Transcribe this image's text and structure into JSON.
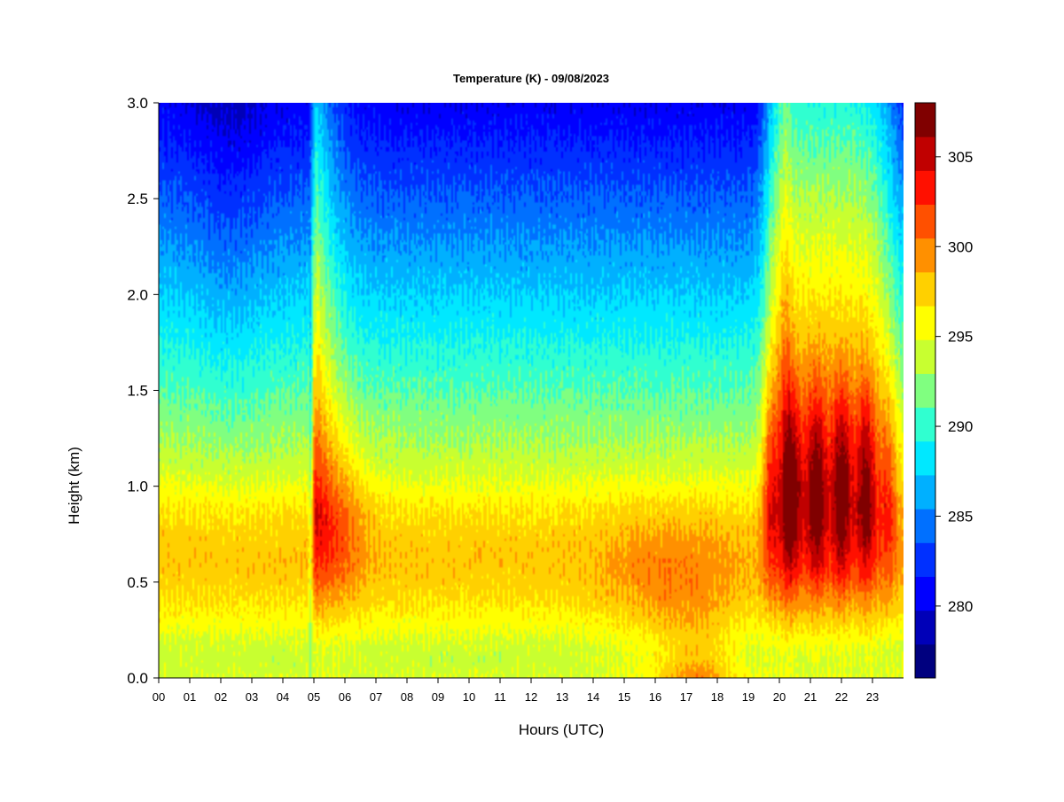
{
  "chart_data": {
    "type": "heatmap",
    "title": "Temperature (K) - 09/08/2023",
    "xlabel": "Hours (UTC)",
    "ylabel": "Height (km)",
    "x_range": [
      0,
      24
    ],
    "y_range": [
      0.0,
      3.0
    ],
    "x_ticks": [
      "00",
      "01",
      "02",
      "03",
      "04",
      "05",
      "06",
      "07",
      "08",
      "09",
      "10",
      "11",
      "12",
      "13",
      "14",
      "15",
      "16",
      "17",
      "18",
      "19",
      "20",
      "21",
      "22",
      "23"
    ],
    "y_ticks": [
      "0.0",
      "0.5",
      "1.0",
      "1.5",
      "2.0",
      "2.5",
      "3.0"
    ],
    "colorbar": {
      "min": 276,
      "max": 308,
      "step": 2,
      "ticks": [
        "280",
        "285",
        "290",
        "295",
        "300",
        "305"
      ],
      "colors": [
        "#00007f",
        "#0000b8",
        "#0000ff",
        "#0030ff",
        "#0070ff",
        "#00b0ff",
        "#00e8ff",
        "#30ffd0",
        "#80ff80",
        "#c8ff30",
        "#ffff00",
        "#ffd000",
        "#ff9000",
        "#ff5000",
        "#ff1000",
        "#c00000",
        "#800000"
      ]
    },
    "features": [
      {
        "hours": [
          4.9,
          6.4
        ],
        "heights_km": [
          0.5,
          1.4
        ],
        "max_temp_K": 304,
        "note": "warm core"
      },
      {
        "hours": [
          16.5,
          18.6
        ],
        "heights_km": [
          0.0,
          0.2
        ],
        "max_temp_K": 302
      },
      {
        "hours": [
          20.5,
          23.2
        ],
        "heights_km": [
          0.5,
          1.5
        ],
        "max_temp_K": 307
      }
    ]
  }
}
